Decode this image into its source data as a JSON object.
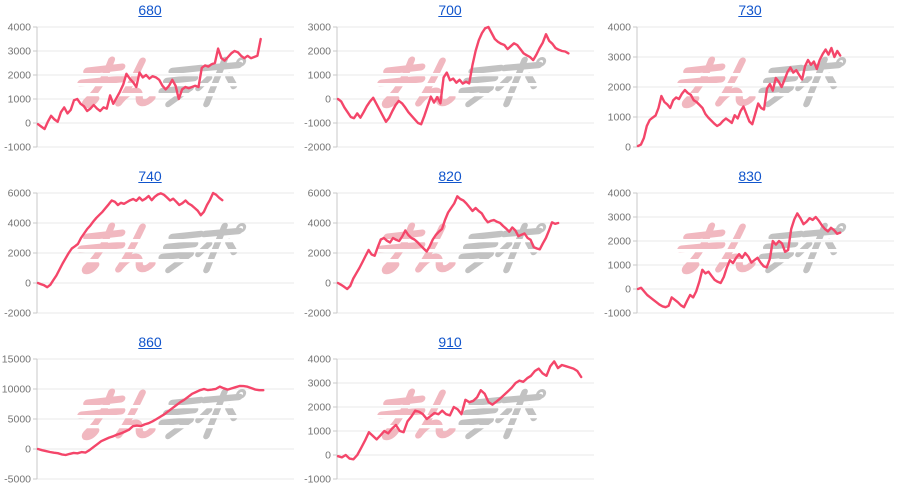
{
  "page": {
    "background": "#ffffff"
  },
  "style": {
    "line_color": "#f4466a",
    "grid_color": "#e8e8e8",
    "axis_color": "#c9c9c9",
    "tick_label_color": "#757575",
    "title_color": "#1155cc",
    "watermark_pink": "#f0b3bb",
    "watermark_grey": "#bdbdbd"
  },
  "watermark": {
    "text_pink": "みん",
    "text_grey": "レポ"
  },
  "chart_data": [
    {
      "type": "line",
      "title": "680",
      "ylim": [
        -1000,
        4000
      ],
      "ytick_step": 1000,
      "x_frac_end": 0.87,
      "values": [
        -50,
        -150,
        -250,
        50,
        300,
        150,
        50,
        450,
        650,
        400,
        550,
        950,
        1000,
        800,
        700,
        500,
        600,
        750,
        600,
        500,
        650,
        600,
        1150,
        800,
        1050,
        1300,
        1600,
        2050,
        1850,
        1700,
        1500,
        2100,
        1900,
        2000,
        1850,
        1950,
        1900,
        1800,
        1550,
        1400,
        1550,
        1800,
        1550,
        1000,
        1400,
        1500,
        1450,
        1500,
        1550,
        1500,
        2300,
        2400,
        2350,
        2450,
        2500,
        3100,
        2700,
        2600,
        2750,
        2900,
        3000,
        2950,
        2800,
        2700,
        2800,
        2700,
        2750,
        2800,
        3500
      ]
    },
    {
      "type": "line",
      "title": "700",
      "ylim": [
        -2000,
        3000
      ],
      "ytick_step": 1000,
      "x_frac_end": 0.9,
      "values": [
        0,
        -100,
        -350,
        -550,
        -750,
        -800,
        -600,
        -780,
        -550,
        -300,
        -100,
        50,
        -200,
        -450,
        -700,
        -950,
        -780,
        -500,
        -250,
        -80,
        -180,
        -350,
        -550,
        -700,
        -850,
        -1000,
        -1050,
        -700,
        -300,
        100,
        -150,
        80,
        -180,
        900,
        1100,
        780,
        850,
        680,
        800,
        640,
        720,
        650,
        1400,
        2000,
        2450,
        2750,
        2950,
        3000,
        2750,
        2500,
        2380,
        2300,
        2250,
        2080,
        2200,
        2320,
        2250,
        2080,
        1900,
        1820,
        1750,
        1620,
        1850,
        2120,
        2350,
        2700,
        2420,
        2300,
        2120,
        2050,
        2000,
        1980,
        1900
      ]
    },
    {
      "type": "line",
      "title": "730",
      "ylim": [
        0,
        4000
      ],
      "ytick_step": 1000,
      "x_frac_end": 0.79,
      "values": [
        30,
        80,
        300,
        700,
        900,
        980,
        1050,
        1300,
        1700,
        1500,
        1420,
        1300,
        1560,
        1650,
        1600,
        1780,
        1900,
        1800,
        1740,
        1560,
        1500,
        1400,
        1300,
        1100,
        980,
        880,
        780,
        700,
        760,
        870,
        950,
        880,
        800,
        1060,
        950,
        1200,
        1350,
        1100,
        850,
        760,
        1100,
        1450,
        1300,
        1250,
        1950,
        2100,
        1880,
        2300,
        2180,
        2000,
        2250,
        2500,
        2650,
        2480,
        2560,
        2400,
        2250,
        2700,
        2900,
        2740,
        2850,
        2600,
        2900,
        3100,
        3250,
        3080,
        3300,
        3000,
        3200,
        3050
      ]
    },
    {
      "type": "line",
      "title": "740",
      "ylim": [
        -2000,
        6000
      ],
      "ytick_step": 2000,
      "x_frac_end": 0.72,
      "values": [
        0,
        -80,
        -150,
        -280,
        -120,
        200,
        500,
        900,
        1300,
        1650,
        2000,
        2300,
        2450,
        2600,
        3000,
        3300,
        3600,
        3820,
        4100,
        4350,
        4550,
        4750,
        5000,
        5250,
        5500,
        5420,
        5200,
        5350,
        5280,
        5400,
        5520,
        5600,
        5480,
        5700,
        5500,
        5620,
        5800,
        5520,
        5750,
        5900,
        5980,
        5880,
        5700,
        5500,
        5620,
        5420,
        5200,
        5320,
        5500,
        5300,
        5180,
        5000,
        4820,
        4520,
        4750,
        5200,
        5550,
        6000,
        5880,
        5680,
        5520
      ]
    },
    {
      "type": "line",
      "title": "820",
      "ylim": [
        -2000,
        6000
      ],
      "ytick_step": 2000,
      "x_frac_end": 0.86,
      "values": [
        0,
        -120,
        -250,
        -400,
        -200,
        300,
        650,
        1000,
        1400,
        1800,
        2200,
        1900,
        1820,
        2400,
        2900,
        3000,
        2820,
        2700,
        3000,
        2880,
        2800,
        3100,
        3500,
        3200,
        3000,
        2900,
        2720,
        2500,
        2300,
        2100,
        2450,
        2900,
        3200,
        3420,
        3600,
        4200,
        4700,
        5000,
        5300,
        5780,
        5600,
        5500,
        5300,
        5050,
        4800,
        5000,
        4800,
        4650,
        4300,
        4050,
        4150,
        4200,
        4080,
        4000,
        3800,
        3620,
        3420,
        3700,
        3500,
        3120,
        3220,
        3300,
        3000,
        2880,
        2400,
        2300,
        2250,
        2650,
        3000,
        3500,
        4050,
        3950,
        4000
      ]
    },
    {
      "type": "line",
      "title": "830",
      "ylim": [
        -1000,
        4000
      ],
      "ytick_step": 1000,
      "x_frac_end": 0.79,
      "values": [
        0,
        50,
        -100,
        -250,
        -350,
        -450,
        -550,
        -650,
        -720,
        -760,
        -700,
        -350,
        -450,
        -550,
        -680,
        -760,
        -500,
        -250,
        -350,
        -100,
        300,
        800,
        650,
        720,
        550,
        380,
        300,
        250,
        500,
        900,
        1200,
        1080,
        1300,
        1450,
        1300,
        1500,
        1350,
        1100,
        1200,
        1300,
        1100,
        950,
        900,
        1250,
        2000,
        1850,
        2000,
        1900,
        1550,
        1620,
        2500,
        2900,
        3150,
        2950,
        2700,
        2800,
        2950,
        2880,
        3000,
        2850,
        2650,
        2500,
        2400,
        2550,
        2450,
        2300,
        2350
      ]
    },
    {
      "type": "line",
      "title": "860",
      "ylim": [
        -5000,
        15000
      ],
      "ytick_step": 5000,
      "x_frac_end": 0.88,
      "values": [
        0,
        -200,
        -350,
        -500,
        -620,
        -700,
        -900,
        -1000,
        -820,
        -650,
        -720,
        -520,
        -600,
        -200,
        300,
        800,
        1300,
        1600,
        1900,
        2120,
        2400,
        2620,
        2900,
        3200,
        3800,
        3900,
        3820,
        4100,
        4300,
        4620,
        5000,
        5400,
        5800,
        6300,
        6800,
        7300,
        7800,
        8200,
        8700,
        9200,
        9500,
        9800,
        10000,
        9820,
        9900,
        10020,
        10400,
        10120,
        9900,
        10100,
        10300,
        10500,
        10480,
        10380,
        10150,
        9900,
        9800,
        9800
      ]
    },
    {
      "type": "line",
      "title": "910",
      "ylim": [
        -1000,
        4000
      ],
      "ytick_step": 1000,
      "x_frac_end": 0.95,
      "values": [
        -50,
        -100,
        0,
        -150,
        -180,
        0,
        300,
        600,
        950,
        800,
        650,
        820,
        1000,
        900,
        1100,
        1250,
        1000,
        950,
        1400,
        1600,
        1850,
        1800,
        1700,
        1500,
        1620,
        1750,
        1700,
        1850,
        1700,
        1650,
        2000,
        1900,
        1700,
        2300,
        2200,
        2250,
        2400,
        2700,
        2550,
        2200,
        2100,
        2220,
        2350,
        2500,
        2650,
        2800,
        3000,
        3100,
        3050,
        3200,
        3300,
        3500,
        3600,
        3400,
        3300,
        3700,
        3900,
        3620,
        3750,
        3700,
        3650,
        3600,
        3500,
        3250
      ]
    }
  ]
}
